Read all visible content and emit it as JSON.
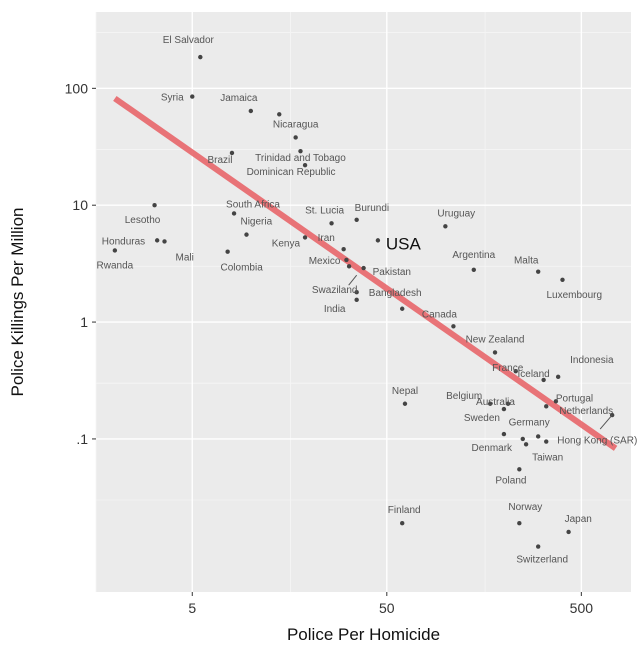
{
  "chart_data": {
    "type": "scatter",
    "xlabel": "Police Per Homicide",
    "ylabel": "Police Killings Per Million",
    "x_scale": "log",
    "y_scale": "log",
    "xlim": [
      1.6,
      900
    ],
    "ylim": [
      0.0049,
      450
    ],
    "x_ticks": [
      {
        "v": 5,
        "label": "5"
      },
      {
        "v": 50,
        "label": "50"
      },
      {
        "v": 500,
        "label": "500"
      }
    ],
    "y_ticks": [
      {
        "v": 100,
        "label": "100"
      },
      {
        "v": 10,
        "label": "10"
      },
      {
        "v": 1,
        "label": "1"
      },
      {
        "v": 0.1,
        "label": ".1"
      }
    ],
    "grid": true,
    "background": "#ebebeb",
    "trend_color": "#e8676b",
    "point_color": "#444444",
    "trend_line": {
      "x": [
        2,
        750
      ],
      "y": [
        82,
        0.083
      ]
    },
    "highlight_label": "USA",
    "points": [
      {
        "name": "El Salvador",
        "x": 5.5,
        "y": 185
      },
      {
        "name": "Syria",
        "x": 5,
        "y": 85
      },
      {
        "name": "Jamaica",
        "x": 10,
        "y": 64
      },
      {
        "name": "",
        "x": 14,
        "y": 60
      },
      {
        "name": "Nicaragua",
        "x": 17,
        "y": 38
      },
      {
        "name": "Brazil",
        "x": 8,
        "y": 28
      },
      {
        "name": "Trinidad and Tobago",
        "x": 18,
        "y": 29
      },
      {
        "name": "Dominican Republic",
        "x": 19,
        "y": 22
      },
      {
        "name": "Lesotho",
        "x": 3.2,
        "y": 10
      },
      {
        "name": "South Africa",
        "x": 8.2,
        "y": 8.5
      },
      {
        "name": "Nigeria",
        "x": 9.5,
        "y": 5.6
      },
      {
        "name": "Honduras",
        "x": 3.3,
        "y": 5
      },
      {
        "name": "Mali",
        "x": 3.6,
        "y": 4.9
      },
      {
        "name": "Kenya",
        "x": 19,
        "y": 5.3
      },
      {
        "name": "Colombia",
        "x": 7.6,
        "y": 4
      },
      {
        "name": "Rwanda",
        "x": 2,
        "y": 4.1
      },
      {
        "name": "St. Lucia",
        "x": 26,
        "y": 7
      },
      {
        "name": "Burundi",
        "x": 35,
        "y": 7.5
      },
      {
        "name": "Iran",
        "x": 30,
        "y": 4.2
      },
      {
        "name": "USA",
        "x": 45,
        "y": 5
      },
      {
        "name": "Uruguay",
        "x": 100,
        "y": 6.6
      },
      {
        "name": "Mexico",
        "x": 31,
        "y": 3.4
      },
      {
        "name": "",
        "x": 32,
        "y": 3
      },
      {
        "name": "Pakistan",
        "x": 38,
        "y": 2.9
      },
      {
        "name": "Argentina",
        "x": 140,
        "y": 2.8
      },
      {
        "name": "Malta",
        "x": 300,
        "y": 2.7
      },
      {
        "name": "Luxembourg",
        "x": 400,
        "y": 2.3
      },
      {
        "name": "Swaziland",
        "x": 35,
        "y": 1.8
      },
      {
        "name": "India",
        "x": 35,
        "y": 1.55
      },
      {
        "name": "Bangladesh",
        "x": 60,
        "y": 1.3
      },
      {
        "name": "Canada",
        "x": 110,
        "y": 0.92
      },
      {
        "name": "New Zealand",
        "x": 180,
        "y": 0.55
      },
      {
        "name": "France",
        "x": 230,
        "y": 0.38
      },
      {
        "name": "Indonesia",
        "x": 380,
        "y": 0.34
      },
      {
        "name": "Iceland",
        "x": 320,
        "y": 0.32
      },
      {
        "name": "Nepal",
        "x": 62,
        "y": 0.2
      },
      {
        "name": "Belgium",
        "x": 170,
        "y": 0.2
      },
      {
        "name": "Australia",
        "x": 210,
        "y": 0.2
      },
      {
        "name": "",
        "x": 200,
        "y": 0.18
      },
      {
        "name": "Portugal",
        "x": 370,
        "y": 0.21
      },
      {
        "name": "",
        "x": 330,
        "y": 0.19
      },
      {
        "name": "Netherlands",
        "x": 720,
        "y": 0.16
      },
      {
        "name": "Sweden",
        "x": 200,
        "y": 0.11
      },
      {
        "name": "Germany",
        "x": 300,
        "y": 0.105
      },
      {
        "name": "Hong Kong (SAR)",
        "x": 330,
        "y": 0.095
      },
      {
        "name": "Denmark",
        "x": 250,
        "y": 0.1
      },
      {
        "name": "Taiwan",
        "x": 260,
        "y": 0.09
      },
      {
        "name": "Poland",
        "x": 240,
        "y": 0.055
      },
      {
        "name": "Finland",
        "x": 60,
        "y": 0.019
      },
      {
        "name": "Norway",
        "x": 240,
        "y": 0.019
      },
      {
        "name": "Japan",
        "x": 430,
        "y": 0.016
      },
      {
        "name": "Switzerland",
        "x": 300,
        "y": 0.012
      }
    ]
  }
}
